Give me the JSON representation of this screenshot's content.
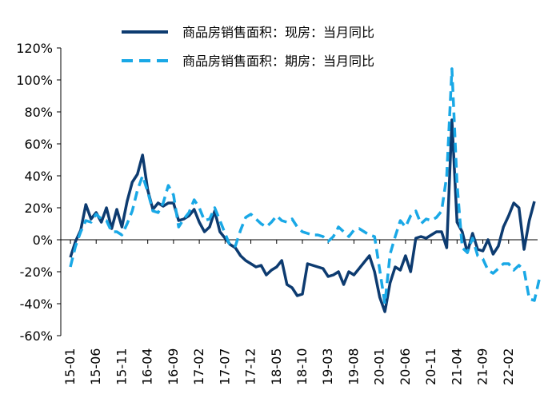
{
  "chart_data": {
    "type": "line",
    "title": "",
    "xlabel": "",
    "ylabel": "",
    "ylim": [
      -60,
      120
    ],
    "y_ticks": [
      "120%",
      "100%",
      "80%",
      "60%",
      "40%",
      "20%",
      "0%",
      "-20%",
      "-40%",
      "-60%"
    ],
    "x_tick_labels": [
      "15-01",
      "15-06",
      "15-11",
      "16-04",
      "16-09",
      "17-02",
      "17-07",
      "17-12",
      "18-05",
      "18-10",
      "19-03",
      "19-08",
      "20-01",
      "20-06",
      "20-11",
      "21-04",
      "21-09",
      "22-02"
    ],
    "x_tick_month_index": [
      0,
      5,
      10,
      15,
      20,
      25,
      30,
      35,
      40,
      45,
      50,
      55,
      60,
      65,
      70,
      75,
      80,
      85
    ],
    "legend_position": "top-center",
    "series": [
      {
        "name": "商品房销售面积：现房：当月同比",
        "color": "#0d3b70",
        "dash": "solid",
        "values": [
          -11,
          -1,
          6,
          22,
          13,
          17,
          11,
          20,
          7,
          19,
          8,
          24,
          36,
          41,
          53,
          31,
          19,
          23,
          21,
          23,
          23,
          12,
          13,
          15,
          19,
          11,
          5,
          8,
          18,
          5,
          1,
          -3,
          -5,
          -10,
          -13,
          -15,
          -17,
          -16,
          -22,
          -19,
          -17,
          -13,
          -28,
          -30,
          -35,
          -34,
          -15,
          -16,
          -17,
          -18,
          -23,
          -22,
          -20,
          -28,
          -20,
          -22,
          -18,
          -14,
          -10,
          -20,
          -36,
          -45,
          -27,
          -17,
          -19,
          -10,
          -20,
          1,
          2,
          1,
          3,
          5,
          5,
          -5,
          75,
          11,
          5,
          -8,
          4,
          -6,
          -7,
          0,
          -9,
          -4,
          8,
          15,
          23,
          20,
          -6,
          12,
          24
        ]
      },
      {
        "name": "商品房销售面积：期房：当月同比",
        "color": "#19a8e6",
        "dash": "dashed",
        "values": [
          -17,
          -4,
          5,
          12,
          11,
          16,
          13,
          12,
          5,
          5,
          3,
          10,
          18,
          31,
          40,
          30,
          18,
          17,
          23,
          34,
          28,
          8,
          13,
          17,
          25,
          20,
          12,
          13,
          20,
          12,
          4,
          -4,
          -4,
          6,
          14,
          16,
          13,
          10,
          8,
          11,
          15,
          12,
          11,
          13,
          8,
          5,
          4,
          3,
          3,
          2,
          -1,
          2,
          8,
          5,
          2,
          6,
          7,
          5,
          3,
          2,
          -19,
          -40,
          -9,
          2,
          12,
          8,
          15,
          18,
          10,
          13,
          12,
          14,
          18,
          40,
          107,
          35,
          -5,
          -8,
          1,
          -10,
          -12,
          -19,
          -21,
          -18,
          -15,
          -15,
          -19,
          -16,
          -19,
          -37,
          -38,
          -24
        ]
      }
    ]
  }
}
